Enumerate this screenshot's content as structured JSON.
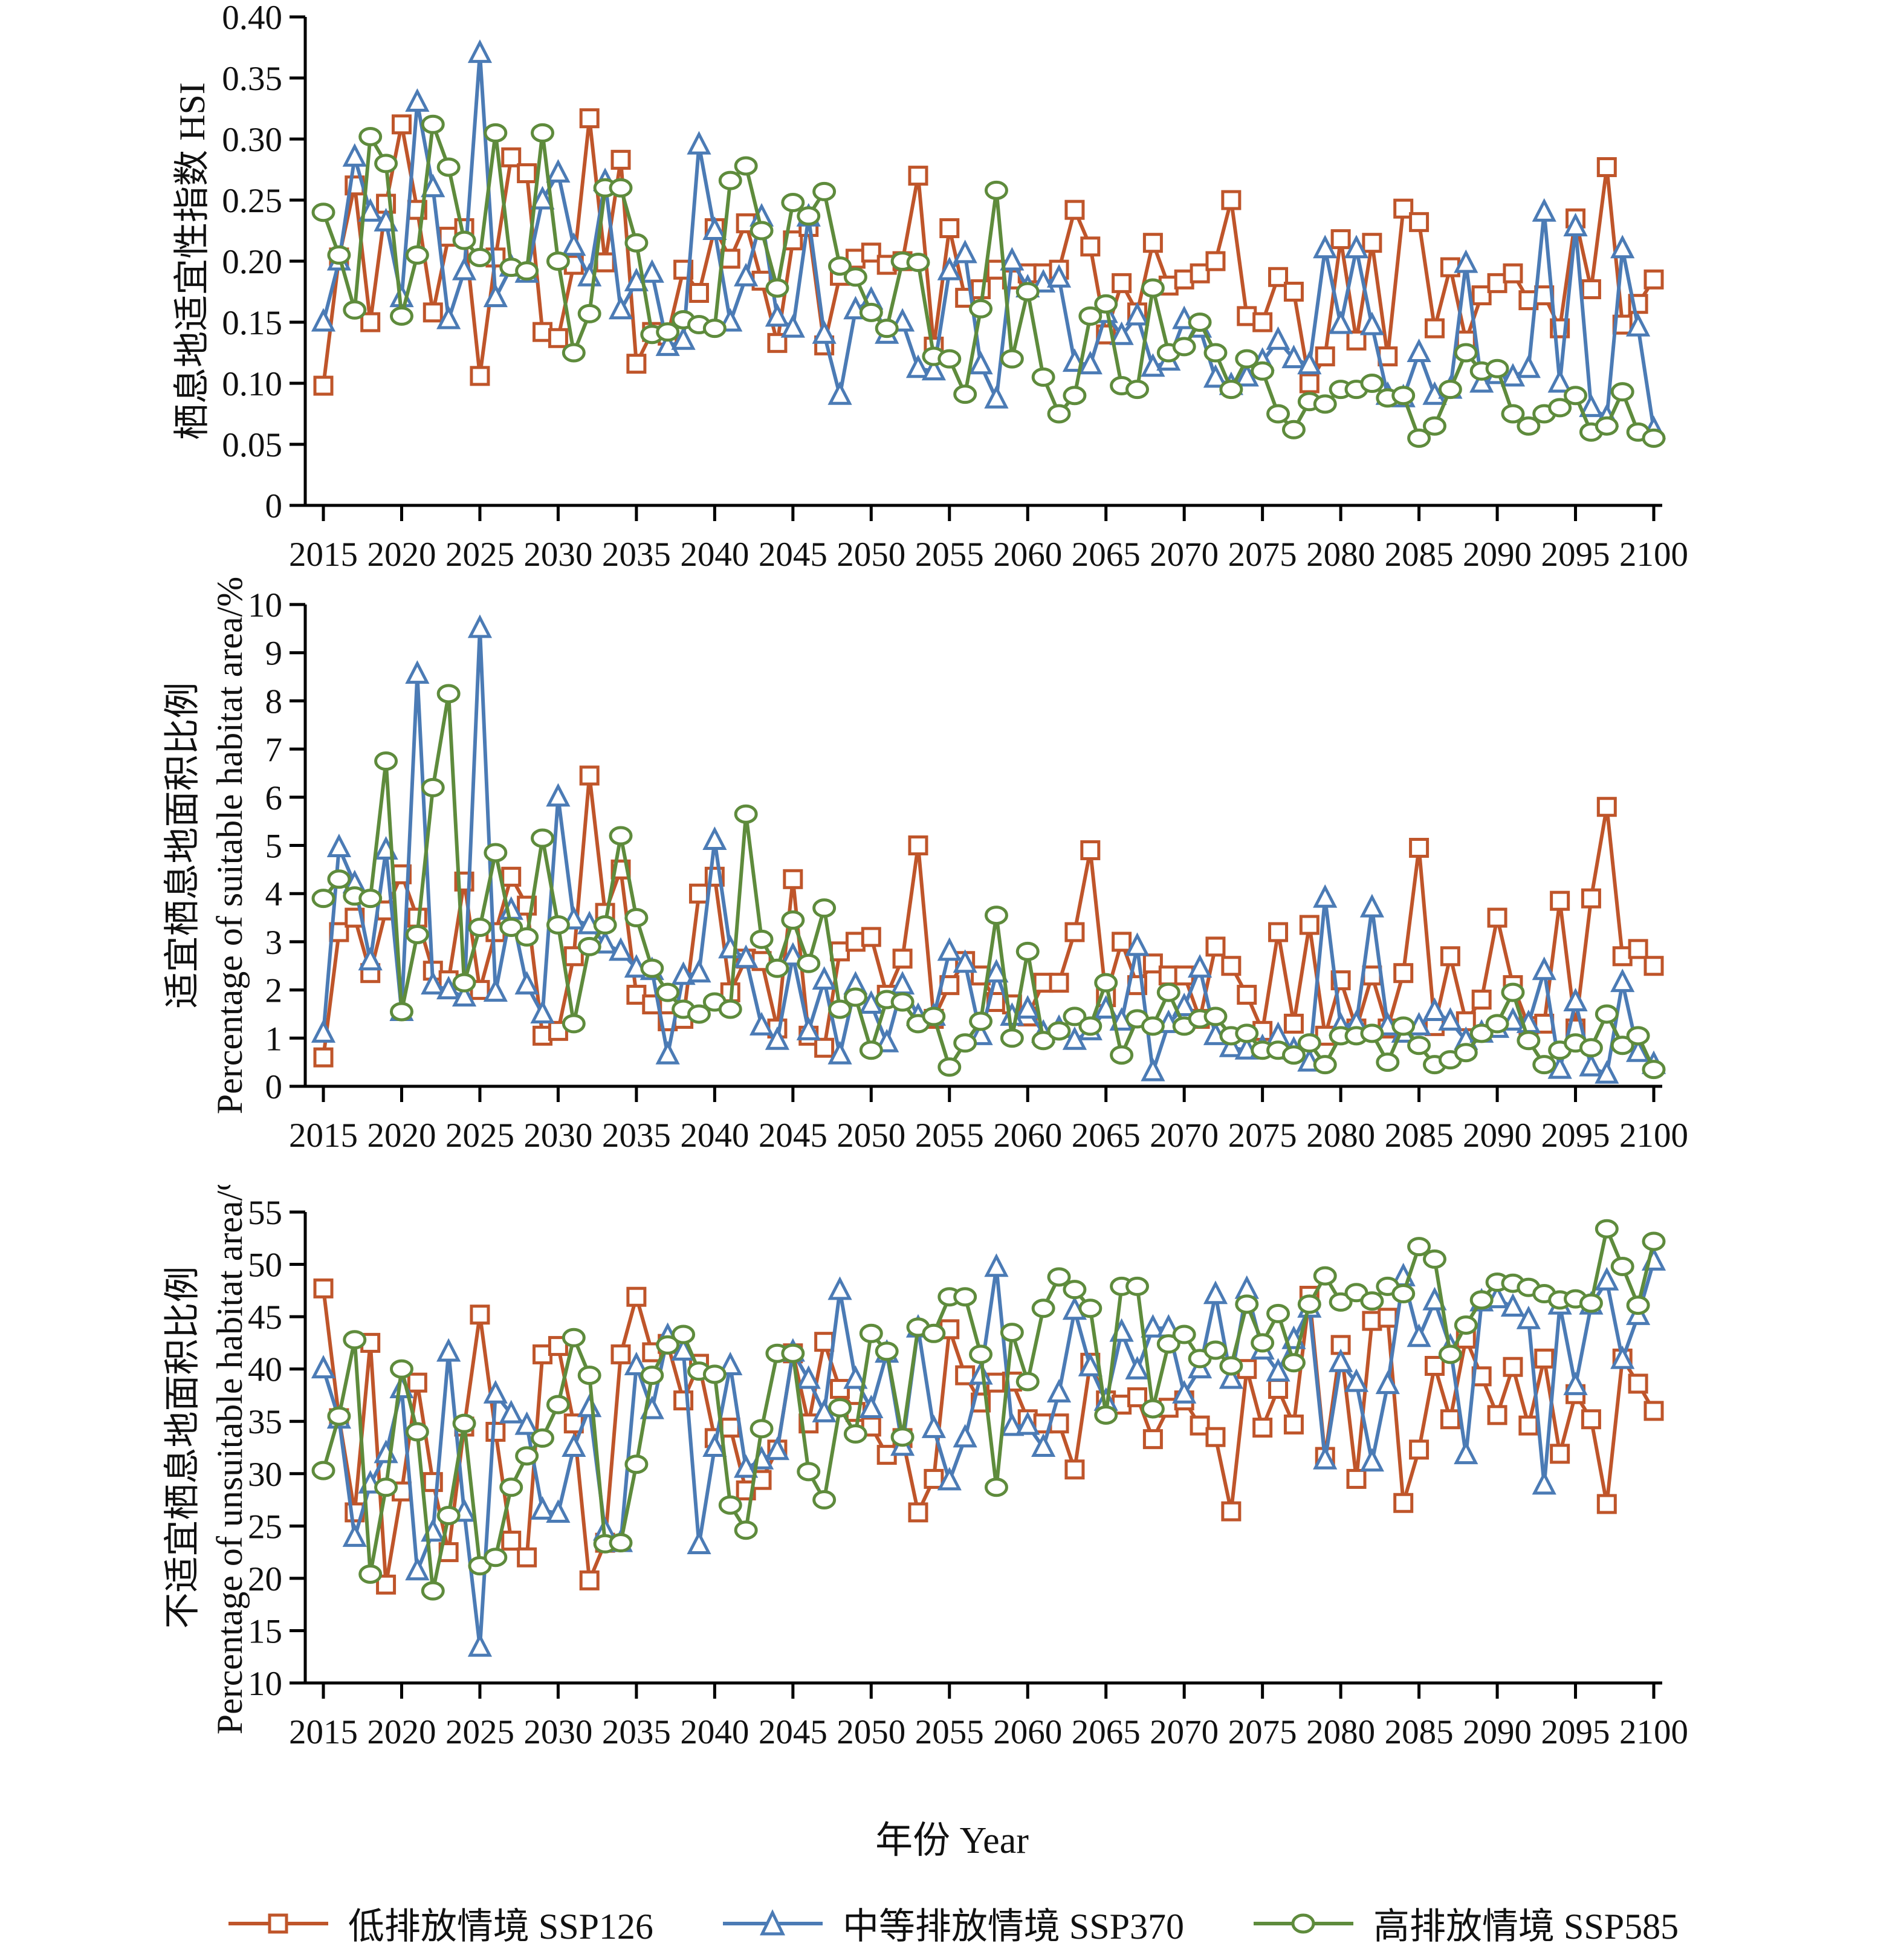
{
  "figure": {
    "background": "#ffffff",
    "x_axis_title": "年份 Year"
  },
  "colors": {
    "red": "#BF552A",
    "blue": "#4B7BB5",
    "green": "#5E8B3C",
    "axis": "#000000",
    "text": "#111111"
  },
  "legend": {
    "items": [
      {
        "label": "低排放情境 SSP126",
        "marker": "square",
        "color": "red"
      },
      {
        "label": "中等排放情境 SSP370",
        "marker": "triangle",
        "color": "blue"
      },
      {
        "label": "高排放情境 SSP585",
        "marker": "circle",
        "color": "green"
      }
    ]
  },
  "chart_data": {
    "type": "line",
    "x_label": "年份 Year",
    "x_range": [
      2015,
      2100
    ],
    "x_ticks": [
      2015,
      2020,
      2025,
      2030,
      2035,
      2040,
      2045,
      2050,
      2055,
      2060,
      2065,
      2070,
      2075,
      2080,
      2085,
      2090,
      2095,
      2100
    ],
    "grid": false,
    "legend_position": "bottom",
    "charts": [
      {
        "id": "hsi",
        "y_title_cn": "栖息地适宜性指数 HSI",
        "y_title_en": "",
        "ylim": [
          0,
          0.4
        ],
        "y_ticks": [
          "0",
          "0.05",
          "0.10",
          "0.15",
          "0.20",
          "0.25",
          "0.30",
          "0.35",
          "0.40"
        ],
        "series": [
          {
            "name": "低排放情境 SSP126",
            "color": "red",
            "marker": "square",
            "values": [
              0.098,
              0.203,
              0.262,
              0.15,
              0.247,
              0.312,
              0.242,
              0.158,
              0.22,
              0.227,
              0.106,
              0.203,
              0.285,
              0.272,
              0.142,
              0.137,
              0.197,
              0.317,
              0.199,
              0.283,
              0.116,
              0.142,
              0.139,
              0.193,
              0.174,
              0.227,
              0.202,
              0.231,
              0.184,
              0.133,
              0.217,
              0.228,
              0.131,
              0.188,
              0.202,
              0.207,
              0.197,
              0.2,
              0.27,
              0.13,
              0.227,
              0.17,
              0.177,
              0.193,
              0.185,
              0.19,
              0.19,
              0.193,
              0.242,
              0.212,
              0.14,
              0.182,
              0.158,
              0.215,
              0.18,
              0.185,
              0.19,
              0.2,
              0.25,
              0.155,
              0.15,
              0.187,
              0.175,
              0.1,
              0.122,
              0.218,
              0.135,
              0.215,
              0.122,
              0.243,
              0.232,
              0.145,
              0.195,
              0.135,
              0.172,
              0.182,
              0.19,
              0.168,
              0.172,
              0.145,
              0.235,
              0.177,
              0.277,
              0.148,
              0.165,
              0.185
            ]
          },
          {
            "name": "中等排放情境 SSP370",
            "color": "blue",
            "marker": "triangle",
            "values": [
              0.15,
              0.2,
              0.285,
              0.24,
              0.232,
              0.17,
              0.33,
              0.26,
              0.152,
              0.192,
              0.37,
              0.17,
              0.195,
              0.19,
              0.25,
              0.272,
              0.212,
              0.187,
              0.265,
              0.16,
              0.183,
              0.19,
              0.13,
              0.135,
              0.295,
              0.225,
              0.15,
              0.187,
              0.236,
              0.154,
              0.145,
              0.236,
              0.14,
              0.09,
              0.16,
              0.168,
              0.14,
              0.15,
              0.112,
              0.11,
              0.192,
              0.206,
              0.115,
              0.087,
              0.2,
              0.178,
              0.182,
              0.186,
              0.117,
              0.115,
              0.157,
              0.139,
              0.155,
              0.113,
              0.118,
              0.152,
              0.145,
              0.104,
              0.098,
              0.105,
              0.118,
              0.135,
              0.12,
              0.115,
              0.21,
              0.148,
              0.21,
              0.147,
              0.09,
              0.088,
              0.125,
              0.09,
              0.095,
              0.198,
              0.1,
              0.107,
              0.105,
              0.112,
              0.24,
              0.1,
              0.228,
              0.08,
              0.072,
              0.21,
              0.146,
              0.062
            ]
          },
          {
            "name": "高排放情境 SSP585",
            "color": "green",
            "marker": "circle",
            "values": [
              0.24,
              0.205,
              0.16,
              0.302,
              0.28,
              0.155,
              0.205,
              0.312,
              0.277,
              0.217,
              0.203,
              0.305,
              0.195,
              0.192,
              0.305,
              0.2,
              0.125,
              0.157,
              0.26,
              0.26,
              0.215,
              0.14,
              0.142,
              0.152,
              0.148,
              0.145,
              0.266,
              0.278,
              0.225,
              0.178,
              0.248,
              0.237,
              0.257,
              0.196,
              0.187,
              0.158,
              0.145,
              0.2,
              0.199,
              0.122,
              0.12,
              0.091,
              0.161,
              0.258,
              0.12,
              0.175,
              0.105,
              0.075,
              0.09,
              0.155,
              0.165,
              0.098,
              0.095,
              0.178,
              0.125,
              0.13,
              0.15,
              0.125,
              0.095,
              0.12,
              0.11,
              0.075,
              0.062,
              0.085,
              0.083,
              0.095,
              0.095,
              0.1,
              0.088,
              0.09,
              0.055,
              0.065,
              0.095,
              0.125,
              0.11,
              0.112,
              0.075,
              0.065,
              0.075,
              0.08,
              0.09,
              0.06,
              0.065,
              0.093,
              0.06,
              0.055
            ]
          }
        ]
      },
      {
        "id": "suitable",
        "y_title_cn": "适宜栖息地面积比例",
        "y_title_en": "Percentage of suitable habitat area/%",
        "ylim": [
          0,
          10
        ],
        "y_ticks": [
          "0",
          "1",
          "2",
          "3",
          "4",
          "5",
          "6",
          "7",
          "8",
          "9",
          "10"
        ],
        "series": [
          {
            "name": "低排放情境 SSP126",
            "color": "red",
            "marker": "square",
            "values": [
              0.6,
              3.2,
              3.5,
              2.35,
              3.65,
              4.4,
              3.5,
              2.4,
              2.2,
              4.25,
              2.0,
              3.2,
              4.35,
              3.75,
              1.05,
              1.15,
              2.7,
              6.45,
              3.6,
              4.5,
              1.9,
              1.7,
              1.35,
              1.4,
              4.0,
              4.35,
              1.95,
              2.65,
              2.6,
              1.2,
              4.3,
              1.05,
              0.8,
              2.8,
              3.0,
              3.1,
              1.9,
              2.65,
              5.0,
              1.4,
              2.1,
              2.6,
              2.3,
              1.75,
              1.7,
              1.45,
              2.15,
              2.15,
              3.2,
              4.9,
              1.85,
              3.0,
              2.1,
              2.55,
              2.3,
              2.3,
              1.4,
              2.9,
              2.5,
              1.9,
              1.15,
              3.2,
              1.3,
              3.35,
              1.05,
              2.2,
              1.2,
              2.3,
              1.2,
              2.35,
              4.95,
              1.25,
              2.7,
              1.35,
              1.8,
              3.5,
              2.1,
              1.25,
              1.3,
              3.85,
              1.2,
              3.9,
              5.8,
              2.7,
              2.85,
              2.5
            ]
          },
          {
            "name": "中等排放情境 SSP370",
            "color": "blue",
            "marker": "triangle",
            "values": [
              1.1,
              4.95,
              4.2,
              2.6,
              4.9,
              1.55,
              8.55,
              2.1,
              2.0,
              1.85,
              9.5,
              1.95,
              3.65,
              2.1,
              1.5,
              6.0,
              3.45,
              3.35,
              2.95,
              2.8,
              2.45,
              2.4,
              0.65,
              2.3,
              2.35,
              5.1,
              2.85,
              2.65,
              1.25,
              0.95,
              2.7,
              1.15,
              2.2,
              0.65,
              2.1,
              1.7,
              0.9,
              2.1,
              1.45,
              1.45,
              2.8,
              2.55,
              1.05,
              2.35,
              1.45,
              1.6,
              1.1,
              1.2,
              0.95,
              1.15,
              1.6,
              1.35,
              2.9,
              0.3,
              1.3,
              1.65,
              2.45,
              1.05,
              0.8,
              0.75,
              0.8,
              1.05,
              0.75,
              0.5,
              3.9,
              1.25,
              1.3,
              3.7,
              1.25,
              1.1,
              1.25,
              1.55,
              1.35,
              0.95,
              1.1,
              1.2,
              1.35,
              1.3,
              2.4,
              0.35,
              1.75,
              0.4,
              0.25,
              2.15,
              0.7,
              0.45
            ]
          },
          {
            "name": "高排放情境 SSP585",
            "color": "green",
            "marker": "circle",
            "values": [
              3.9,
              4.3,
              3.95,
              3.9,
              6.75,
              1.55,
              3.15,
              6.2,
              8.15,
              2.15,
              3.3,
              4.85,
              3.3,
              3.1,
              5.15,
              3.35,
              1.3,
              2.9,
              3.35,
              5.2,
              3.5,
              2.45,
              1.95,
              1.6,
              1.5,
              1.75,
              1.6,
              5.65,
              3.05,
              2.45,
              3.45,
              2.55,
              3.7,
              1.6,
              1.85,
              0.75,
              1.8,
              1.75,
              1.3,
              1.45,
              0.4,
              0.9,
              1.35,
              3.55,
              1.0,
              2.8,
              0.95,
              1.15,
              1.45,
              1.25,
              2.15,
              0.65,
              1.4,
              1.25,
              1.95,
              1.25,
              1.4,
              1.45,
              1.05,
              1.1,
              0.75,
              0.75,
              0.65,
              0.9,
              0.45,
              1.05,
              1.05,
              1.1,
              0.5,
              1.25,
              0.85,
              0.45,
              0.55,
              0.7,
              1.1,
              1.3,
              1.95,
              0.95,
              0.45,
              0.75,
              0.9,
              0.8,
              1.5,
              0.85,
              1.05,
              0.35
            ]
          }
        ]
      },
      {
        "id": "unsuitable",
        "y_title_cn": "不适宜栖息地面积比例",
        "y_title_en": "Percentage of unsuitable habitat area/%",
        "ylim": [
          10,
          55
        ],
        "y_ticks": [
          "10",
          "15",
          "20",
          "25",
          "30",
          "35",
          "40",
          "45",
          "50",
          "55"
        ],
        "series": [
          {
            "name": "低排放情境 SSP126",
            "color": "red",
            "marker": "square",
            "values": [
              47.7,
              35.3,
              26.3,
              42.5,
              19.4,
              28.3,
              38.7,
              29.2,
              22.5,
              34.5,
              45.2,
              34.0,
              23.6,
              22.0,
              41.4,
              42.2,
              34.8,
              19.8,
              23.4,
              41.4,
              46.9,
              41.6,
              42.4,
              37.0,
              40.5,
              33.4,
              34.4,
              28.4,
              29.4,
              32.3,
              41.5,
              34.8,
              42.6,
              38.1,
              35.9,
              34.5,
              31.8,
              33.4,
              26.3,
              29.5,
              43.8,
              39.4,
              36.8,
              38.7,
              38.8,
              35.2,
              34.8,
              34.8,
              30.4,
              40.6,
              37.0,
              36.6,
              37.3,
              33.3,
              36.3,
              37.0,
              34.6,
              33.5,
              26.4,
              40.0,
              34.4,
              38.1,
              34.7,
              47.0,
              31.6,
              42.3,
              29.5,
              44.6,
              44.9,
              27.2,
              32.3,
              40.3,
              35.2,
              42.9,
              39.3,
              35.6,
              40.2,
              34.6,
              41.0,
              31.9,
              37.6,
              35.2,
              27.1,
              41.0,
              38.6,
              36.0
            ]
          },
          {
            "name": "中等排放情境 SSP370",
            "color": "blue",
            "marker": "triangle",
            "values": [
              40.0,
              35.2,
              23.9,
              29.0,
              31.9,
              38.1,
              20.7,
              24.4,
              41.6,
              26.3,
              13.4,
              37.6,
              35.7,
              34.6,
              26.5,
              26.2,
              32.5,
              36.3,
              24.5,
              23.4,
              40.3,
              36.1,
              43.1,
              41.7,
              23.2,
              32.5,
              40.3,
              30.5,
              31.3,
              32.2,
              41.6,
              39.0,
              35.8,
              47.5,
              39.0,
              36.2,
              41.5,
              32.6,
              43.9,
              34.3,
              29.3,
              33.4,
              39.4,
              49.7,
              34.5,
              34.6,
              32.5,
              37.7,
              45.6,
              40.2,
              36.9,
              43.5,
              39.9,
              43.9,
              43.9,
              37.6,
              40.0,
              47.1,
              39.0,
              47.6,
              41.8,
              39.7,
              42.8,
              45.8,
              31.3,
              40.6,
              38.7,
              31.1,
              38.5,
              48.8,
              43.0,
              46.5,
              42.1,
              31.8,
              46.4,
              46.7,
              45.9,
              44.7,
              28.9,
              46.1,
              38.4,
              46.1,
              48.4,
              40.9,
              45.1,
              50.3
            ]
          },
          {
            "name": "高排放情境 SSP585",
            "color": "green",
            "marker": "circle",
            "values": [
              30.3,
              35.5,
              42.8,
              20.4,
              28.7,
              40.0,
              34.0,
              18.8,
              26.0,
              34.8,
              21.2,
              22.0,
              28.7,
              31.7,
              33.4,
              36.6,
              43.0,
              39.4,
              23.3,
              23.4,
              30.9,
              39.4,
              42.3,
              43.3,
              39.8,
              39.5,
              27.0,
              24.6,
              34.3,
              41.5,
              41.5,
              30.2,
              27.5,
              36.3,
              33.8,
              43.4,
              41.7,
              33.5,
              44.0,
              43.4,
              46.9,
              46.9,
              41.4,
              28.7,
              43.5,
              38.8,
              45.8,
              48.8,
              47.6,
              45.8,
              35.6,
              47.9,
              47.9,
              36.2,
              42.4,
              43.3,
              41.0,
              41.8,
              40.3,
              46.2,
              42.5,
              45.3,
              40.6,
              46.2,
              48.9,
              46.4,
              47.3,
              46.5,
              47.9,
              47.2,
              51.7,
              50.5,
              41.4,
              44.2,
              46.6,
              48.3,
              48.2,
              47.8,
              47.2,
              46.6,
              46.7,
              46.3,
              53.4,
              49.8,
              46.1,
              52.2
            ]
          }
        ]
      }
    ]
  }
}
